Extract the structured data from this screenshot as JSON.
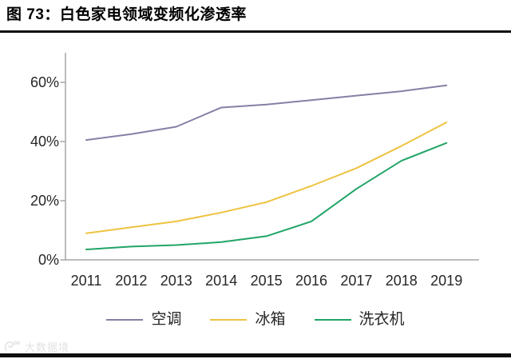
{
  "header": {
    "title": "图 73：白色家电领域变频化渗透率"
  },
  "chart_data": {
    "type": "line",
    "title": "白色家电领域变频化渗透率",
    "categories": [
      "2011",
      "2012",
      "2013",
      "2014",
      "2015",
      "2016",
      "2017",
      "2018",
      "2019"
    ],
    "series": [
      {
        "name": "空调",
        "color": "#877fa5",
        "values": [
          40.5,
          42.5,
          45,
          51.5,
          52.5,
          54,
          55.5,
          57,
          59
        ]
      },
      {
        "name": "冰箱",
        "color": "#eec340",
        "values": [
          9,
          11,
          13,
          16,
          19.5,
          25,
          31,
          38.5,
          46.5
        ]
      },
      {
        "name": "洗衣机",
        "color": "#21a468",
        "values": [
          3.5,
          4.5,
          5,
          6,
          8,
          13,
          24,
          33.5,
          39.5
        ]
      }
    ],
    "xlabel": "",
    "ylabel": "",
    "ylim": [
      0,
      65
    ],
    "y_ticks": [
      {
        "label": "0%",
        "value": 0
      },
      {
        "label": "20%",
        "value": 20
      },
      {
        "label": "40%",
        "value": 40
      },
      {
        "label": "60%",
        "value": 60
      }
    ],
    "grid": false,
    "legend_position": "bottom"
  },
  "watermark": {
    "text": "大数据境"
  },
  "colors": {
    "axis": "#a6a6a6",
    "tick_text": "#262626",
    "title_text": "#000000",
    "rule": "#0d0d0d",
    "watermark": "#e2e2e2"
  }
}
